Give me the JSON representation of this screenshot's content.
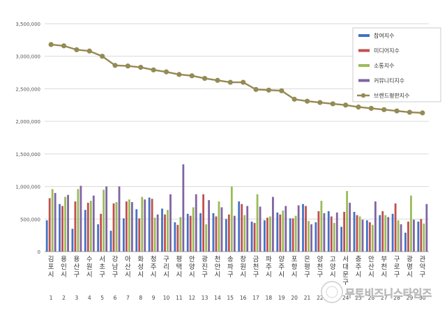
{
  "chart_data": {
    "type": "bar+line",
    "title": "",
    "xlabel": "",
    "ylabel": "",
    "ylim": [
      0,
      3500000
    ],
    "y_ticks": [
      "0",
      "500,000",
      "1,000,000",
      "1,500,000",
      "2,000,000",
      "2,500,000",
      "3,000,000",
      "3,500,000"
    ],
    "grid": "horizontal",
    "legend_position": "right",
    "categories": [
      "김포시",
      "용인시",
      "용산구",
      "수원시",
      "서초구",
      "강남구",
      "아산시",
      "화성시",
      "청주시",
      "구리시",
      "평택시",
      "안양시",
      "광진구",
      "천안시",
      "송파구",
      "창원시",
      "금천구",
      "파주시",
      "양주시",
      "포항시",
      "은평구",
      "양천구",
      "고양시",
      "서대문구",
      "충주시",
      "안산시",
      "부천시",
      "구로구",
      "광명시",
      "관악구"
    ],
    "ranks": [
      "1",
      "2",
      "3",
      "4",
      "5",
      "6",
      "7",
      "8",
      "9",
      "10",
      "11",
      "12",
      "13",
      "14",
      "15",
      "16",
      "17",
      "18",
      "19",
      "20",
      "21",
      "22",
      "23",
      "24",
      "25",
      "26",
      "27",
      "28",
      "29",
      "30"
    ],
    "series": [
      {
        "name": "참여지수",
        "type": "bar",
        "color": "#4472C4",
        "values": [
          480000,
          730000,
          350000,
          640000,
          420000,
          320000,
          510000,
          650000,
          830000,
          660000,
          450000,
          580000,
          590000,
          590000,
          500000,
          770000,
          460000,
          480000,
          600000,
          510000,
          730000,
          450000,
          620000,
          380000,
          610000,
          480000,
          560000,
          580000,
          290000,
          460000
        ]
      },
      {
        "name": "미디어지수",
        "type": "bar",
        "color": "#C0504D",
        "values": [
          820000,
          700000,
          770000,
          750000,
          580000,
          740000,
          770000,
          510000,
          810000,
          570000,
          410000,
          550000,
          880000,
          540000,
          570000,
          730000,
          440000,
          520000,
          570000,
          510000,
          700000,
          620000,
          540000,
          610000,
          560000,
          450000,
          620000,
          740000,
          460000,
          500000
        ]
      },
      {
        "name": "소통지수",
        "type": "bar",
        "color": "#9BBB59",
        "values": [
          960000,
          840000,
          960000,
          780000,
          950000,
          760000,
          800000,
          840000,
          520000,
          640000,
          530000,
          680000,
          420000,
          770000,
          1000000,
          560000,
          880000,
          540000,
          630000,
          550000,
          470000,
          780000,
          440000,
          930000,
          540000,
          410000,
          560000,
          480000,
          860000,
          430000
        ]
      },
      {
        "name": "커뮤니티지수",
        "type": "bar",
        "color": "#8064A2",
        "values": [
          900000,
          870000,
          1010000,
          860000,
          1000000,
          1000000,
          760000,
          800000,
          570000,
          880000,
          1340000,
          880000,
          790000,
          680000,
          550000,
          700000,
          690000,
          840000,
          700000,
          710000,
          420000,
          590000,
          600000,
          750000,
          490000,
          770000,
          530000,
          420000,
          490000,
          730000
        ]
      },
      {
        "name": "브랜드평판지수",
        "type": "line",
        "color": "#948A54",
        "values": [
          3180000,
          3160000,
          3100000,
          3080000,
          3000000,
          2860000,
          2850000,
          2830000,
          2790000,
          2760000,
          2720000,
          2700000,
          2660000,
          2630000,
          2600000,
          2600000,
          2490000,
          2480000,
          2470000,
          2340000,
          2310000,
          2290000,
          2270000,
          2250000,
          2220000,
          2200000,
          2180000,
          2160000,
          2140000,
          2130000
        ]
      }
    ]
  },
  "watermark": "무토비즈니스타임즈"
}
